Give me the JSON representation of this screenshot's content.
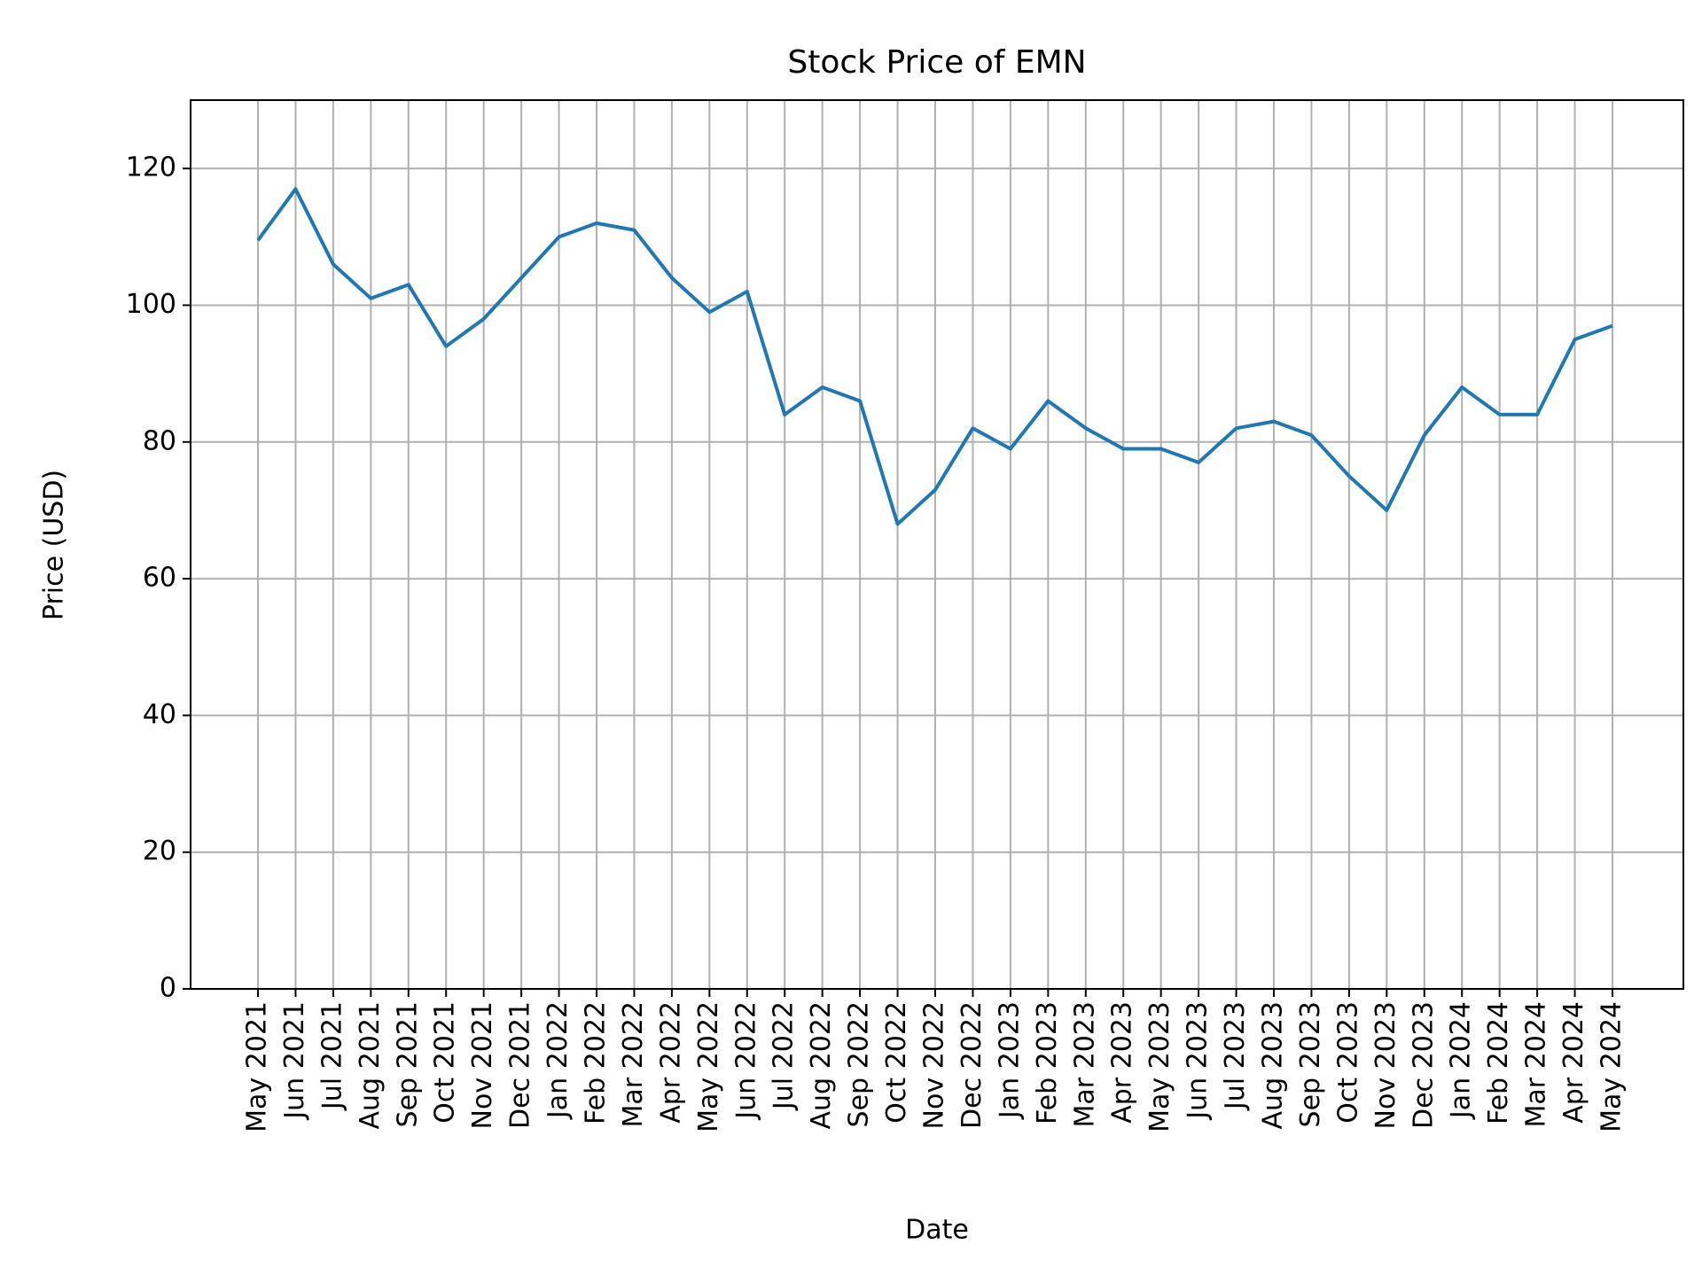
{
  "chart_data": {
    "type": "line",
    "title": "Stock Price of EMN",
    "x_label": "Date",
    "y_label": "Price (USD)",
    "categories": [
      "May 2021",
      "Jun 2021",
      "Jul 2021",
      "Aug 2021",
      "Sep 2021",
      "Oct 2021",
      "Nov 2021",
      "Dec 2021",
      "Jan 2022",
      "Feb 2022",
      "Mar 2022",
      "Apr 2022",
      "May 2022",
      "Jun 2022",
      "Jul 2022",
      "Aug 2022",
      "Sep 2022",
      "Oct 2022",
      "Nov 2022",
      "Dec 2022",
      "Jan 2023",
      "Feb 2023",
      "Mar 2023",
      "Apr 2023",
      "May 2023",
      "Jun 2023",
      "Jul 2023",
      "Aug 2023",
      "Sep 2023",
      "Oct 2023",
      "Nov 2023",
      "Dec 2023",
      "Jan 2024",
      "Feb 2024",
      "Mar 2024",
      "Apr 2024",
      "May 2024"
    ],
    "series": [
      {
        "name": "EMN",
        "color": "#1f77b4",
        "values": [
          109.5,
          117,
          106,
          101,
          103,
          94,
          98,
          104,
          110,
          112,
          111,
          104,
          99,
          102,
          84,
          88,
          86,
          68,
          73,
          82,
          79,
          86,
          82,
          79,
          79,
          77,
          82,
          83,
          81,
          75,
          70,
          81,
          88,
          84,
          84,
          95,
          97
        ]
      }
    ],
    "ylim": [
      0,
      130
    ],
    "yticks": [
      0,
      20,
      40,
      60,
      80,
      100,
      120
    ],
    "grid": true
  }
}
